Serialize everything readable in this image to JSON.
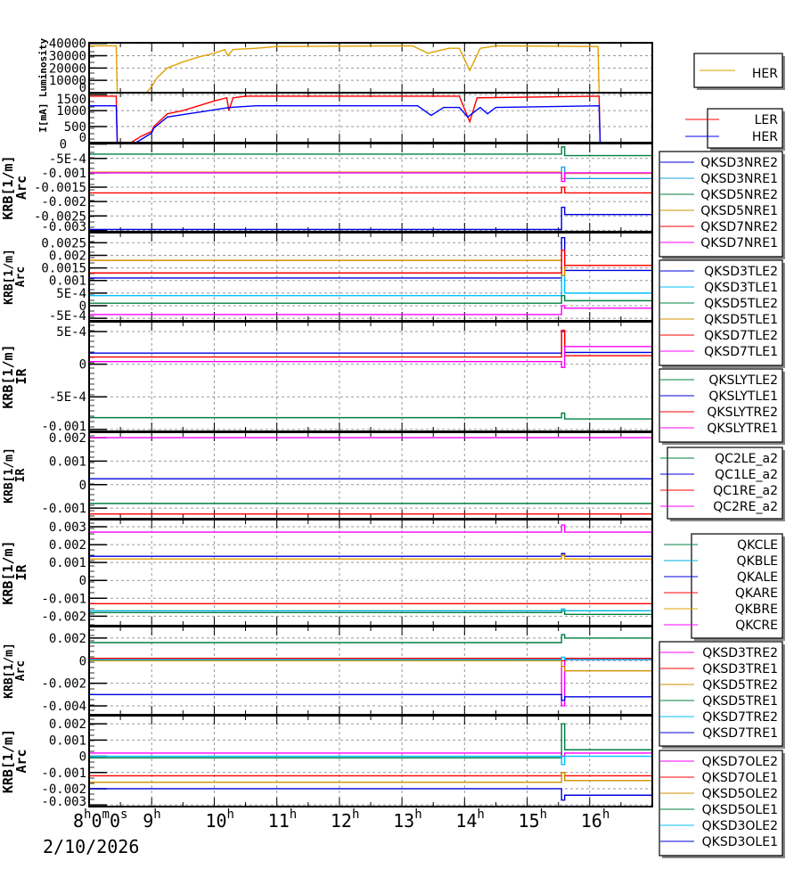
{
  "chart_data": [
    {
      "type": "line",
      "ylabel": "Luminosity",
      "ylim": [
        0,
        40500
      ],
      "yticks": [
        0,
        10000,
        20000,
        30000,
        40000
      ],
      "ytick_labels": [
        "0",
        "10000",
        "20000",
        "30000",
        "40000"
      ],
      "series": [
        {
          "name": "HER",
          "color": "#e0a000",
          "points": [
            [
              "8:00",
              38000
            ],
            [
              "8:26",
              38000
            ],
            [
              "8:27",
              0
            ],
            [
              "8:55",
              0
            ],
            [
              "9:00",
              5000
            ],
            [
              "9:05",
              12000
            ],
            [
              "9:15",
              20000
            ],
            [
              "9:30",
              25000
            ],
            [
              "9:45",
              29000
            ],
            [
              "10:00",
              32000
            ],
            [
              "10:10",
              35000
            ],
            [
              "10:13",
              30000
            ],
            [
              "10:18",
              35000
            ],
            [
              "10:40",
              36000
            ],
            [
              "11:00",
              37500
            ],
            [
              "13:10",
              38000
            ],
            [
              "13:25",
              32000
            ],
            [
              "13:45",
              36000
            ],
            [
              "13:55",
              36000
            ],
            [
              "14:05",
              18000
            ],
            [
              "14:15",
              36000
            ],
            [
              "14:30",
              38000
            ],
            [
              "16:08",
              37500
            ],
            [
              "16:09",
              0
            ],
            [
              "17:00",
              0
            ]
          ]
        }
      ]
    },
    {
      "type": "line",
      "ylabel": "I[mA]",
      "ylim": [
        0,
        1560
      ],
      "yticks": [
        0,
        500,
        1000,
        1500
      ],
      "ytick_labels": [
        "0",
        "500",
        "1000",
        "1500"
      ],
      "series": [
        {
          "name": "LER",
          "color": "#ff0000",
          "points": [
            [
              "8:00",
              1450
            ],
            [
              "8:26",
              1450
            ],
            [
              "8:27",
              0
            ],
            [
              "8:40",
              0
            ],
            [
              "8:50",
              200
            ],
            [
              "9:00",
              350
            ],
            [
              "9:02",
              500
            ],
            [
              "9:15",
              900
            ],
            [
              "9:30",
              1000
            ],
            [
              "9:45",
              1150
            ],
            [
              "10:00",
              1300
            ],
            [
              "10:12",
              1400
            ],
            [
              "10:14",
              1000
            ],
            [
              "10:18",
              1400
            ],
            [
              "10:30",
              1450
            ],
            [
              "13:55",
              1450
            ],
            [
              "14:05",
              650
            ],
            [
              "14:12",
              1400
            ],
            [
              "16:09",
              1450
            ],
            [
              "16:10",
              0
            ],
            [
              "17:00",
              0
            ]
          ]
        },
        {
          "name": "HER",
          "color": "#0000ff",
          "points": [
            [
              "8:00",
              1150
            ],
            [
              "8:26",
              1150
            ],
            [
              "8:27",
              0
            ],
            [
              "8:45",
              0
            ],
            [
              "9:00",
              300
            ],
            [
              "9:02",
              450
            ],
            [
              "9:15",
              800
            ],
            [
              "9:45",
              950
            ],
            [
              "10:15",
              1100
            ],
            [
              "10:40",
              1150
            ],
            [
              "13:15",
              1150
            ],
            [
              "13:28",
              850
            ],
            [
              "13:40",
              1100
            ],
            [
              "13:55",
              1100
            ],
            [
              "14:03",
              800
            ],
            [
              "14:15",
              1100
            ],
            [
              "14:22",
              900
            ],
            [
              "14:30",
              1100
            ],
            [
              "16:09",
              1150
            ],
            [
              "16:10",
              0
            ],
            [
              "17:00",
              0
            ]
          ]
        }
      ]
    },
    {
      "type": "line",
      "ylabel": "KRB[1/m]",
      "ylabel2": "Arc",
      "ylim": [
        -0.00305,
        2e-05
      ],
      "yticks": [
        0,
        -0.0005,
        -0.001,
        -0.0015,
        -0.002,
        -0.0025,
        -0.003
      ],
      "ytick_labels": [
        "0",
        "-5E-4",
        "-0.001",
        "-0.0015",
        "-0.002",
        "-0.0025",
        "-0.003"
      ],
      "series": [
        {
          "name": "QKSD3NRE2",
          "color": "#0000dd",
          "levels": [
            -0.00297,
            -0.0022,
            -0.00245
          ]
        },
        {
          "name": "QKSD3NRE1",
          "color": "#1ea0e0",
          "levels": [
            -0.001,
            -0.0008,
            -0.0012
          ]
        },
        {
          "name": "QKSD5NRE2",
          "color": "#008040",
          "levels": [
            -0.00035,
            -0.0001,
            -0.0004
          ]
        },
        {
          "name": "QKSD5NRE1",
          "color": "#d09000",
          "levels": [
            -0.00098,
            -0.0012,
            -0.00102
          ]
        },
        {
          "name": "QKSD7NRE2",
          "color": "#ff0000",
          "levels": [
            -0.0017,
            -0.0015,
            -0.0017
          ]
        },
        {
          "name": "QKSD7NRE1",
          "color": "#ff00ff",
          "levels": [
            -0.001,
            -0.0013,
            -0.001
          ]
        }
      ]
    },
    {
      "type": "line",
      "ylabel": "KRB[1/m]",
      "ylabel2": "Arc",
      "ylim": [
        -0.0006,
        0.0029
      ],
      "yticks": [
        -0.0005,
        0,
        0.0005,
        0.001,
        0.0015,
        0.002,
        0.0025
      ],
      "ytick_labels": [
        "-5E-4",
        "0",
        "5E-4",
        "0.001",
        "0.0015",
        "0.002",
        "0.0025"
      ],
      "series": [
        {
          "name": "QKSD3TLE2",
          "color": "#0000dd",
          "levels": [
            0.0011,
            0.0027,
            0.0014
          ]
        },
        {
          "name": "QKSD3TLE1",
          "color": "#00c0ff",
          "levels": [
            0.0004,
            0.0012,
            0.0005
          ]
        },
        {
          "name": "QKSD5TLE2",
          "color": "#008040",
          "levels": [
            0.0001,
            0.0004,
            0.0002
          ]
        },
        {
          "name": "QKSD5TLE1",
          "color": "#d09000",
          "levels": [
            0.0018,
            0.0012,
            0.0016
          ]
        },
        {
          "name": "QKSD7TLE2",
          "color": "#ff0000",
          "levels": [
            0.0013,
            0.0022,
            0.0016
          ]
        },
        {
          "name": "QKSD7TLE1",
          "color": "#ff00ff",
          "levels": [
            -0.00035,
            0.0,
            -0.0001
          ]
        }
      ]
    },
    {
      "type": "line",
      "ylabel": "KRB[1/m]",
      "ylabel2": "IR",
      "ylim": [
        -0.00103,
        0.00065
      ],
      "yticks": [
        -0.001,
        -0.0005,
        0,
        0.0005
      ],
      "ytick_labels": [
        "-0.001",
        "-5E-4",
        "0",
        "5E-4"
      ],
      "series": [
        {
          "name": "QKSLYTLE2",
          "color": "#008040",
          "levels": [
            -0.00082,
            -0.00075,
            -0.00084
          ]
        },
        {
          "name": "QKSLYTLE1",
          "color": "#0000dd",
          "levels": [
            0.00017,
            0.0005,
            0.00018
          ]
        },
        {
          "name": "QKSLYTRE2",
          "color": "#ff0000",
          "levels": [
            0.00011,
            0.00052,
            0.00013
          ]
        },
        {
          "name": "QKSLYTRE1",
          "color": "#ff00ff",
          "levels": [
            4e-05,
            -5e-05,
            0.00027
          ]
        }
      ]
    },
    {
      "type": "line",
      "ylabel": "KRB[1/m]",
      "ylabel2": "IR",
      "ylim": [
        -0.00145,
        0.00223
      ],
      "yticks": [
        -0.001,
        0,
        0.001,
        0.002
      ],
      "ytick_labels": [
        "-0.001",
        "0",
        "0.001",
        "0.002"
      ],
      "series": [
        {
          "name": "QC2LE_a2",
          "color": "#008040",
          "levels": [
            -0.0008,
            -0.0008,
            -0.0008
          ]
        },
        {
          "name": "QC1LE_a2",
          "color": "#0000dd",
          "levels": [
            0.00025,
            0.00025,
            0.00025
          ]
        },
        {
          "name": "QC1RE_a2",
          "color": "#ff0000",
          "levels": [
            -0.00125,
            -0.00125,
            -0.00125
          ]
        },
        {
          "name": "QC2RE_a2",
          "color": "#ff00ff",
          "levels": [
            0.002,
            0.002,
            0.002
          ]
        }
      ]
    },
    {
      "type": "line",
      "ylabel": "KRB[1/m]",
      "ylabel2": "IR",
      "ylim": [
        -0.00253,
        0.0034
      ],
      "yticks": [
        -0.002,
        -0.001,
        0,
        0.001,
        0.002,
        0.003
      ],
      "ytick_labels": [
        "-0.002",
        "-0.001",
        "0",
        "0.001",
        "0.002",
        "0.003"
      ],
      "series": [
        {
          "name": "QKCLE",
          "color": "#008040",
          "levels": [
            -0.0018,
            -0.0017,
            -0.0019
          ]
        },
        {
          "name": "QKBLE",
          "color": "#00b0e0",
          "levels": [
            -0.0017,
            -0.0016,
            -0.0017
          ]
        },
        {
          "name": "QKALE",
          "color": "#0000dd",
          "levels": [
            0.00135,
            0.0015,
            0.00135
          ]
        },
        {
          "name": "QKARE",
          "color": "#ff0000",
          "levels": [
            -0.0013,
            -0.0013,
            -0.0013
          ]
        },
        {
          "name": "QKBRE",
          "color": "#e0a000",
          "levels": [
            0.0012,
            0.0014,
            0.0012
          ]
        },
        {
          "name": "QKCRE",
          "color": "#ff00ff",
          "levels": [
            0.0027,
            0.0031,
            0.0027
          ]
        }
      ]
    },
    {
      "type": "line",
      "ylabel": "KRB[1/m]",
      "ylabel2": "Arc",
      "ylim": [
        -0.00479,
        0.00302
      ],
      "yticks": [
        -0.004,
        -0.002,
        0,
        0.002
      ],
      "ytick_labels": [
        "-0.004",
        "-0.002",
        "0",
        "0.002"
      ],
      "series": [
        {
          "name": "QKSD3TRE2",
          "color": "#ff00ff",
          "levels": [
            0.0001,
            -0.004,
            0.0001
          ]
        },
        {
          "name": "QKSD3TRE1",
          "color": "#ff0000",
          "levels": [
            0.0002,
            0.0,
            0.0002
          ]
        },
        {
          "name": "QKSD5TRE2",
          "color": "#d09000",
          "levels": [
            0.0,
            -0.0005,
            -0.0009
          ]
        },
        {
          "name": "QKSD5TRE1",
          "color": "#008040",
          "levels": [
            0.0016,
            0.0023,
            0.002
          ]
        },
        {
          "name": "QKSD7TRE2",
          "color": "#00c0ff",
          "levels": [
            0.0001,
            0.0003,
            0.0001
          ]
        },
        {
          "name": "QKSD7TRE1",
          "color": "#0000dd",
          "levels": [
            -0.003,
            -0.0035,
            -0.0032
          ]
        }
      ]
    },
    {
      "type": "line",
      "ylabel": "KRB[1/m]",
      "ylabel2": "Arc",
      "ylim": [
        -0.0031,
        0.0025
      ],
      "yticks": [
        -0.003,
        -0.002,
        -0.001,
        0,
        0.001,
        0.002
      ],
      "ytick_labels": [
        "-0.003",
        "-0.002",
        "-0.001",
        "0",
        "0.001",
        "0.002"
      ],
      "series": [
        {
          "name": "QKSD7OLE2",
          "color": "#ff00ff",
          "levels": [
            0.0002,
            0.0,
            0.0002
          ]
        },
        {
          "name": "QKSD7OLE1",
          "color": "#ff0000",
          "levels": [
            -0.0012,
            -0.001,
            -0.0012
          ]
        },
        {
          "name": "QKSD5OLE2",
          "color": "#d09000",
          "levels": [
            -0.0016,
            -0.001,
            -0.0015
          ]
        },
        {
          "name": "QKSD5OLE1",
          "color": "#008040",
          "levels": [
            -0.0001,
            0.002,
            0.0004
          ]
        },
        {
          "name": "QKSD3OLE2",
          "color": "#00c0ff",
          "levels": [
            0.0,
            -0.0005,
            0.0
          ]
        },
        {
          "name": "QKSD3OLE1",
          "color": "#0000dd",
          "levels": [
            -0.002,
            -0.0027,
            -0.0024
          ]
        }
      ]
    }
  ],
  "x_axis": {
    "range": [
      "8:00",
      "17:00"
    ],
    "first_label": {
      "h": "8",
      "m": "0",
      "s": "0"
    },
    "hour_labels": [
      "9",
      "10",
      "11",
      "12",
      "13",
      "14",
      "15",
      "16"
    ],
    "date": "2/10/2026",
    "units": {
      "h": "h",
      "m": "m",
      "s": "s"
    }
  },
  "grid": true
}
